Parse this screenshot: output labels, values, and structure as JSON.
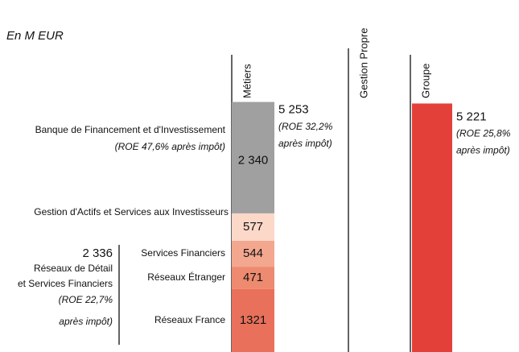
{
  "chart_data": {
    "type": "stacked_bar",
    "subtitle": "En M EUR",
    "categories": [
      "Métiers",
      "Gestion Propre",
      "Groupe"
    ],
    "ylim": [
      0,
      5500
    ],
    "series": [
      {
        "name": "Réseaux France",
        "color": "#e9705b",
        "values": [
          1321,
          null,
          null
        ]
      },
      {
        "name": "Réseaux Étranger",
        "color": "#ee8a6f",
        "values": [
          471,
          null,
          null
        ]
      },
      {
        "name": "Services Financiers",
        "color": "#f3a78f",
        "values": [
          544,
          null,
          null
        ]
      },
      {
        "name": "Gestion d'Actifs et Services aux Investisseurs",
        "color": "#fcd8c9",
        "values": [
          577,
          null,
          null
        ]
      },
      {
        "name": "Banque de Financement et d'Investissement",
        "note": "(ROE 47,6% après impôt)",
        "color": "#a0a0a0",
        "values": [
          2340,
          null,
          null
        ],
        "value_labels": [
          "2 340",
          null,
          null
        ]
      }
    ],
    "subtotal": {
      "value": 2336,
      "value_label": "2 336",
      "name_lines": [
        "Réseaux de Détail",
        "et Services Financiers"
      ],
      "note_lines": [
        "(ROE 22,7%",
        "après impôt)"
      ]
    },
    "totals": {
      "color": "#e3403a",
      "values": [
        5253,
        null,
        5221
      ],
      "value_labels": [
        "5 253",
        null,
        "5 221"
      ],
      "note_lines": [
        [
          "(ROE 32,2%",
          "après impôt)"
        ],
        null,
        [
          "(ROE 25,8%",
          "après impôt)"
        ]
      ]
    }
  }
}
